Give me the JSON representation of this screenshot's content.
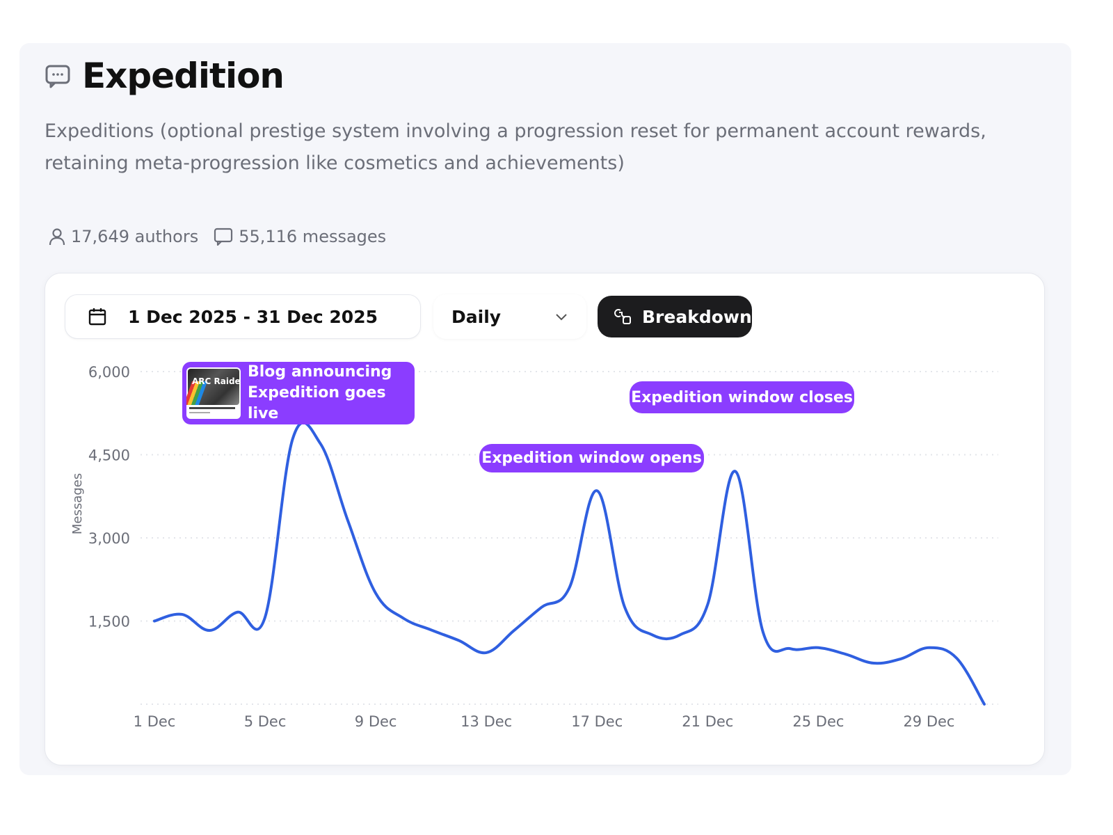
{
  "header": {
    "title": "Expedition",
    "title_icon": "message-square-icon",
    "description": "Expeditions (optional prestige system involving a progression reset for permanent account rewards, retaining meta-progression like cosmetics and achievements)"
  },
  "stats": {
    "authors": "17,649 authors",
    "messages": "55,116 messages"
  },
  "controls": {
    "date_range": "1 Dec 2025 - 31 Dec 2025",
    "period": "Daily",
    "breakdown": "Breakdown"
  },
  "annotations": {
    "blog": "Blog announcing Expedition goes live",
    "blog_image_text": "ARC Raiders",
    "closes": "Expedition window closes",
    "opens": "Expedition window opens"
  },
  "colors": {
    "line": "#2f5fe0",
    "annotation": "#8b3dff",
    "breakdown_bg": "#1c1c1e"
  },
  "chart_data": {
    "type": "line",
    "ylabel": "Messages",
    "xlabel": "",
    "ylim": [
      0,
      6000
    ],
    "y_ticks": [
      1500,
      3000,
      4500,
      6000
    ],
    "y_tick_labels": [
      "1,500",
      "3,000",
      "4,500",
      "6,000"
    ],
    "grid": true,
    "x_tick_labels": [
      "1 Dec",
      "5 Dec",
      "9 Dec",
      "13 Dec",
      "17 Dec",
      "21 Dec",
      "25 Dec",
      "29 Dec"
    ],
    "x": [
      "1 Dec",
      "2 Dec",
      "3 Dec",
      "4 Dec",
      "5 Dec",
      "6 Dec",
      "7 Dec",
      "8 Dec",
      "9 Dec",
      "10 Dec",
      "11 Dec",
      "12 Dec",
      "13 Dec",
      "14 Dec",
      "15 Dec",
      "16 Dec",
      "17 Dec",
      "18 Dec",
      "19 Dec",
      "20 Dec",
      "21 Dec",
      "22 Dec",
      "23 Dec",
      "24 Dec",
      "25 Dec",
      "26 Dec",
      "27 Dec",
      "28 Dec",
      "29 Dec",
      "30 Dec",
      "31 Dec"
    ],
    "series": [
      {
        "values": [
          1500,
          1620,
          1330,
          1660,
          1570,
          4790,
          4700,
          3300,
          2000,
          1550,
          1340,
          1150,
          930,
          1330,
          1750,
          2100,
          3850,
          1750,
          1250,
          1250,
          1800,
          4200,
          1300,
          1000,
          1020,
          900,
          740,
          820,
          1020,
          830,
          0
        ]
      }
    ]
  }
}
